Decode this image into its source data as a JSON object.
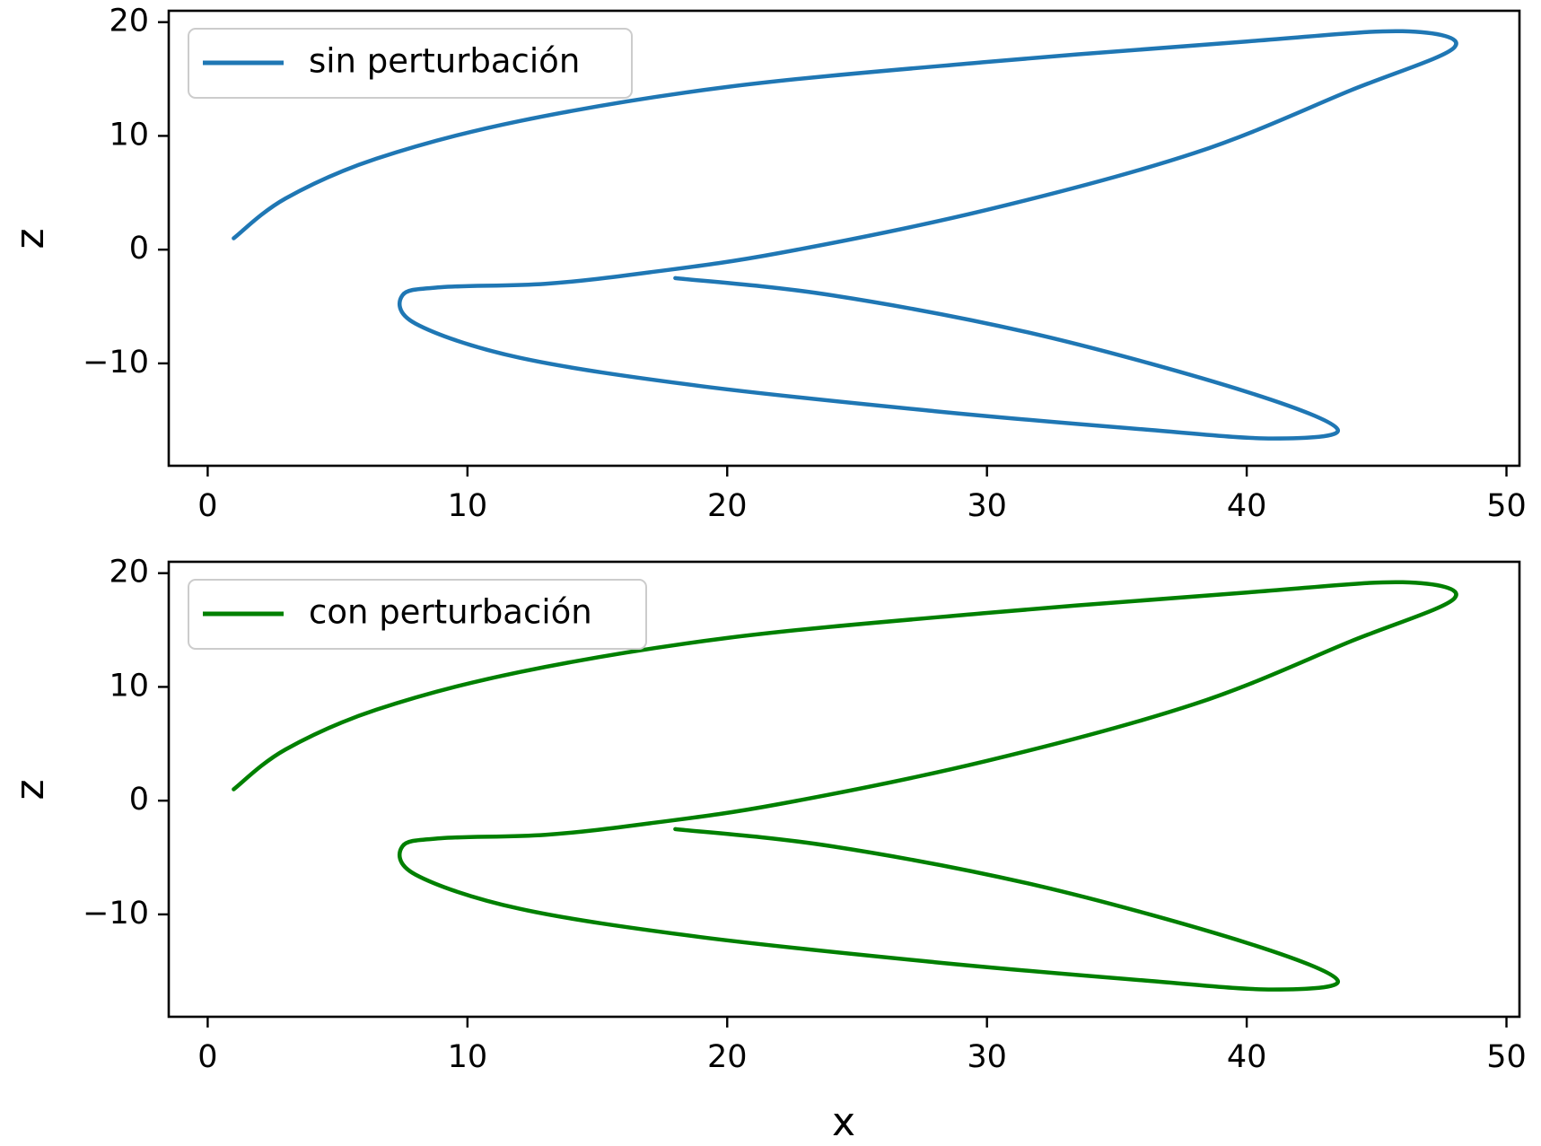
{
  "chart_data": [
    {
      "type": "line",
      "title": "",
      "xlabel": "",
      "ylabel": "z",
      "xlim": [
        -1.5,
        50.5
      ],
      "ylim": [
        -19,
        21
      ],
      "xticks": [
        0,
        10,
        20,
        30,
        40,
        50
      ],
      "yticks": [
        -10,
        0,
        10,
        20
      ],
      "xtick_labels": [
        "0",
        "10",
        "20",
        "30",
        "40",
        "50"
      ],
      "ytick_labels": [
        "−10",
        "0",
        "10",
        "20"
      ],
      "legend_position": "upper-left",
      "grid": false,
      "series": [
        {
          "name": "sin perturbación",
          "color": "#1f77b4",
          "x": [
            1.0,
            3.0,
            6.5,
            12.0,
            20.0,
            30.0,
            40.0,
            46.0,
            48.0,
            44.0,
            38.0,
            30.0,
            22.0,
            17.0,
            13.0,
            9.0,
            7.5,
            8.0,
            12.0,
            19.0,
            28.0,
            36.0,
            41.0,
            43.5,
            40.0,
            32.0,
            24.0,
            18.0
          ],
          "y": [
            1.0,
            4.5,
            8.0,
            11.3,
            14.3,
            16.5,
            18.3,
            19.2,
            17.8,
            14.0,
            8.5,
            3.5,
            -0.3,
            -2.0,
            -3.0,
            -3.3,
            -4.0,
            -6.5,
            -9.5,
            -12.0,
            -14.2,
            -15.8,
            -16.6,
            -15.8,
            -12.5,
            -7.5,
            -4.0,
            -2.5
          ]
        }
      ]
    },
    {
      "type": "line",
      "title": "",
      "xlabel": "x",
      "ylabel": "z",
      "xlim": [
        -1.5,
        50.5
      ],
      "ylim": [
        -19,
        21
      ],
      "xticks": [
        0,
        10,
        20,
        30,
        40,
        50
      ],
      "yticks": [
        -10,
        0,
        10,
        20
      ],
      "xtick_labels": [
        "0",
        "10",
        "20",
        "30",
        "40",
        "50"
      ],
      "ytick_labels": [
        "−10",
        "0",
        "10",
        "20"
      ],
      "legend_position": "upper-left",
      "grid": false,
      "series": [
        {
          "name": "con perturbación",
          "color": "#008000",
          "x": [
            1.0,
            3.0,
            6.5,
            12.0,
            20.0,
            30.0,
            40.0,
            46.0,
            48.0,
            44.0,
            38.0,
            30.0,
            22.0,
            17.0,
            13.0,
            9.0,
            7.5,
            8.0,
            12.0,
            19.0,
            28.0,
            36.0,
            41.0,
            43.5,
            40.0,
            32.0,
            24.0,
            18.0
          ],
          "y": [
            1.0,
            4.5,
            8.0,
            11.3,
            14.3,
            16.5,
            18.3,
            19.2,
            17.8,
            14.0,
            8.5,
            3.5,
            -0.3,
            -2.0,
            -3.0,
            -3.3,
            -4.0,
            -6.5,
            -9.5,
            -12.0,
            -14.2,
            -15.8,
            -16.6,
            -15.8,
            -12.5,
            -7.5,
            -4.0,
            -2.5
          ]
        }
      ]
    }
  ]
}
